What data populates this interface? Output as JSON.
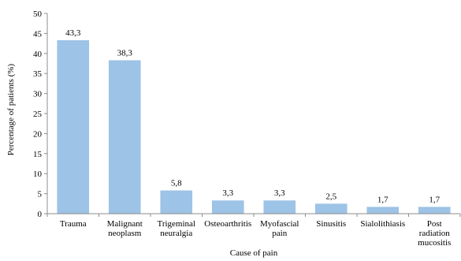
{
  "chart_data": {
    "type": "bar",
    "title": "",
    "xlabel": "Cause of pain",
    "ylabel": "Percentage of patients (%)",
    "ylim": [
      0,
      50
    ],
    "yticks": [
      0,
      5,
      10,
      15,
      20,
      25,
      30,
      35,
      40,
      45,
      50
    ],
    "categories": [
      [
        "Trauma"
      ],
      [
        "Malignant",
        "neoplasm"
      ],
      [
        "Trigeminal",
        "neuralgia"
      ],
      [
        "Osteoarthritis"
      ],
      [
        "Myofascial",
        "pain"
      ],
      [
        "Sinusitis"
      ],
      [
        "Sialolithiasis"
      ],
      [
        "Post",
        "radiation",
        "mucositis"
      ]
    ],
    "values": [
      43.3,
      38.3,
      5.8,
      3.3,
      3.3,
      2.5,
      1.7,
      1.7
    ],
    "value_labels": [
      "43,3",
      "38,3",
      "5,8",
      "3,3",
      "3,3",
      "2,5",
      "1,7",
      "1,7"
    ],
    "bar_color": "#9dc3e6",
    "grid": false,
    "legend": "none"
  }
}
